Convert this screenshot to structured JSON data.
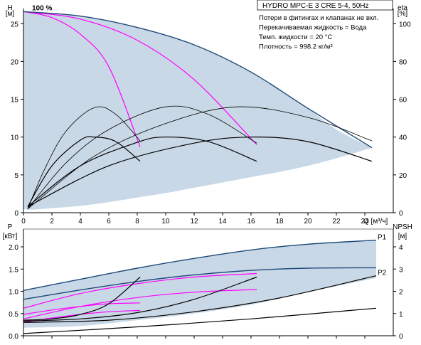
{
  "colors": {
    "envelope_fill": "#c9d8e6",
    "envelope_outline": "#1e4a7a",
    "curve_black": "#000000",
    "curve_magenta": "#ff00ff",
    "background": "#ffffff"
  },
  "chart_data": [
    {
      "type": "line",
      "title": "HYDRO MPC-E 3 CRE 5-4, 50Hz",
      "notes": [
        "Потери в фитингах и клапанах не вкл.",
        "Перекачиваемая жидкость = Вода",
        "Темп. жидкости = 20 °C",
        "Плотность = 998.2 кг/м³"
      ],
      "annotation": "100 %",
      "xlabel": "Q [м³/ч]",
      "ylabel": "H",
      "ylabel_unit": "[м]",
      "y2label": "eta",
      "y2label_unit": "[%]",
      "xlim": [
        0,
        26
      ],
      "ylim": [
        0,
        27
      ],
      "y2lim": [
        0,
        108
      ],
      "x_ticks": [
        0,
        2,
        4,
        6,
        8,
        10,
        12,
        14,
        16,
        18,
        20,
        22,
        24
      ],
      "y_ticks": [
        0,
        5,
        10,
        15,
        20,
        25
      ],
      "y2_ticks": [
        0,
        20,
        40,
        60,
        80,
        100
      ],
      "grid": false,
      "envelope": {
        "upper": [
          [
            0.0,
            26.6
          ],
          [
            2,
            26.4
          ],
          [
            4,
            26.0
          ],
          [
            6,
            25.3
          ],
          [
            8,
            24.5
          ],
          [
            10,
            23.5
          ],
          [
            12,
            22.2
          ],
          [
            14,
            20.6
          ],
          [
            16,
            18.6
          ],
          [
            18,
            16.3
          ],
          [
            20,
            13.8
          ],
          [
            22,
            11.0
          ],
          [
            24.5,
            8.6
          ]
        ],
        "lower": [
          [
            24.5,
            8.6
          ],
          [
            22,
            7.2
          ],
          [
            20,
            6.2
          ],
          [
            18,
            5.4
          ],
          [
            16,
            4.7
          ],
          [
            14,
            4.0
          ],
          [
            12,
            3.3
          ],
          [
            10,
            2.6
          ],
          [
            8,
            2.0
          ],
          [
            6,
            1.4
          ],
          [
            4,
            0.9
          ],
          [
            2,
            0.6
          ],
          [
            0.5,
            0.4
          ],
          [
            0.0,
            0.5
          ]
        ]
      },
      "series": [
        {
          "kind": "head",
          "color": "magenta",
          "values": [
            [
              0,
              26.6
            ],
            [
              2,
              25.8
            ],
            [
              4,
              23.6
            ],
            [
              6,
              19.3
            ],
            [
              8.2,
              8.7
            ]
          ]
        },
        {
          "kind": "head",
          "color": "magenta",
          "values": [
            [
              0,
              26.6
            ],
            [
              4,
              25.6
            ],
            [
              8,
              22.8
            ],
            [
              12,
              17.6
            ],
            [
              16.4,
              9.0
            ]
          ]
        },
        {
          "kind": "head",
          "color": "navy",
          "values": [
            [
              0,
              26.6
            ],
            [
              4,
              26.0
            ],
            [
              8,
              24.5
            ],
            [
              12,
              22.2
            ],
            [
              16,
              18.6
            ],
            [
              20,
              13.8
            ],
            [
              24.5,
              8.6
            ]
          ]
        },
        {
          "kind": "efficiency",
          "color": "black",
          "values": [
            [
              0.3,
              0.5
            ],
            [
              1.5,
              5.8
            ],
            [
              3,
              10.8
            ],
            [
              5,
              13.9
            ],
            [
              6.5,
              13.0
            ],
            [
              8.2,
              9.5
            ]
          ]
        },
        {
          "kind": "efficiency",
          "color": "black",
          "values": [
            [
              0.3,
              0.5
            ],
            [
              3,
              6.6
            ],
            [
              6,
              11.0
            ],
            [
              10,
              14.0
            ],
            [
              13,
              13.0
            ],
            [
              16.4,
              9.2
            ]
          ]
        },
        {
          "kind": "efficiency",
          "color": "black",
          "values": [
            [
              0.3,
              0.5
            ],
            [
              5,
              7.5
            ],
            [
              10,
              11.8
            ],
            [
              15,
              14.0
            ],
            [
              20,
              12.6
            ],
            [
              24.5,
              9.5
            ]
          ]
        },
        {
          "kind": "head-partial",
          "color": "black",
          "values": [
            [
              0.3,
              0.8
            ],
            [
              2,
              6.2
            ],
            [
              4,
              9.6
            ],
            [
              5,
              10.0
            ],
            [
              6.5,
              9.4
            ],
            [
              8.2,
              6.8
            ]
          ]
        },
        {
          "kind": "head-partial",
          "color": "black",
          "values": [
            [
              0.3,
              0.8
            ],
            [
              4,
              6.2
            ],
            [
              8,
              9.3
            ],
            [
              10,
              10.0
            ],
            [
              13,
              9.4
            ],
            [
              16.4,
              6.8
            ]
          ]
        },
        {
          "kind": "head-partial",
          "color": "black",
          "values": [
            [
              0.3,
              0.8
            ],
            [
              6,
              6.2
            ],
            [
              12,
              9.2
            ],
            [
              16,
              10.0
            ],
            [
              20,
              9.4
            ],
            [
              24.5,
              6.8
            ]
          ]
        }
      ]
    },
    {
      "type": "line",
      "ylabel": "P",
      "ylabel_unit": "[кВт]",
      "y2label": "NPSH",
      "y2label_unit": "[м]",
      "xlim": [
        0,
        26
      ],
      "ylim": [
        0,
        2.4
      ],
      "y2lim": [
        0,
        4.8
      ],
      "y_ticks": [
        0.0,
        0.5,
        1.0,
        1.5,
        2.0
      ],
      "y_tick_labels": [
        "0.0",
        "0.5",
        "1.0",
        "1.5",
        "2.0"
      ],
      "y2_ticks": [
        0,
        1,
        2,
        3,
        4
      ],
      "grid": false,
      "labels": [
        "P1",
        "P2"
      ],
      "envelope": {
        "upper": [
          [
            0,
            1.02
          ],
          [
            4,
            1.27
          ],
          [
            8,
            1.52
          ],
          [
            12,
            1.74
          ],
          [
            16,
            1.93
          ],
          [
            20,
            2.06
          ],
          [
            24.8,
            2.15
          ]
        ],
        "lower": [
          [
            24.8,
            1.3
          ],
          [
            20,
            0.98
          ],
          [
            16,
            0.7
          ],
          [
            12,
            0.5
          ],
          [
            8,
            0.35
          ],
          [
            4,
            0.22
          ],
          [
            0,
            0.18
          ]
        ]
      },
      "series": [
        {
          "label": "P1",
          "color": "navy",
          "values": [
            [
              0,
              1.02
            ],
            [
              4,
              1.27
            ],
            [
              8,
              1.52
            ],
            [
              12,
              1.74
            ],
            [
              16,
              1.93
            ],
            [
              20,
              2.06
            ],
            [
              24.8,
              2.15
            ]
          ]
        },
        {
          "label": "P2",
          "color": "navy",
          "values": [
            [
              0,
              0.82
            ],
            [
              4,
              1.03
            ],
            [
              8,
              1.22
            ],
            [
              12,
              1.37
            ],
            [
              16,
              1.47
            ],
            [
              20,
              1.52
            ],
            [
              24.8,
              1.53
            ]
          ]
        },
        {
          "color": "magenta",
          "values": [
            [
              0,
              0.62
            ],
            [
              4,
              0.95
            ],
            [
              8,
              1.17
            ],
            [
              12,
              1.32
            ],
            [
              16.4,
              1.4
            ]
          ]
        },
        {
          "color": "magenta",
          "values": [
            [
              0,
              0.48
            ],
            [
              2,
              0.58
            ],
            [
              4,
              0.66
            ],
            [
              6,
              0.72
            ],
            [
              8.2,
              0.74
            ]
          ]
        },
        {
          "color": "magenta",
          "values": [
            [
              0,
              0.38
            ],
            [
              4,
              0.66
            ],
            [
              8,
              0.86
            ],
            [
              12,
              0.98
            ],
            [
              16.4,
              1.04
            ]
          ]
        },
        {
          "color": "magenta",
          "values": [
            [
              0,
              0.3
            ],
            [
              2,
              0.4
            ],
            [
              4,
              0.48
            ],
            [
              6,
              0.54
            ],
            [
              8.2,
              0.57
            ]
          ]
        },
        {
          "color": "black",
          "values": [
            [
              0,
              0.35
            ],
            [
              2,
              0.38
            ],
            [
              4,
              0.48
            ],
            [
              6,
              0.72
            ],
            [
              8.2,
              1.32
            ]
          ]
        },
        {
          "color": "black",
          "values": [
            [
              0,
              0.33
            ],
            [
              4,
              0.38
            ],
            [
              8,
              0.52
            ],
            [
              12,
              0.82
            ],
            [
              16.4,
              1.32
            ]
          ]
        },
        {
          "color": "black",
          "values": [
            [
              0,
              0.3
            ],
            [
              6,
              0.35
            ],
            [
              12,
              0.54
            ],
            [
              18,
              0.85
            ],
            [
              24.8,
              1.35
            ]
          ]
        },
        {
          "color": "black",
          "values": [
            [
              0,
              0.05
            ],
            [
              8,
              0.2
            ],
            [
              16,
              0.38
            ],
            [
              24.8,
              0.62
            ]
          ]
        }
      ]
    }
  ]
}
